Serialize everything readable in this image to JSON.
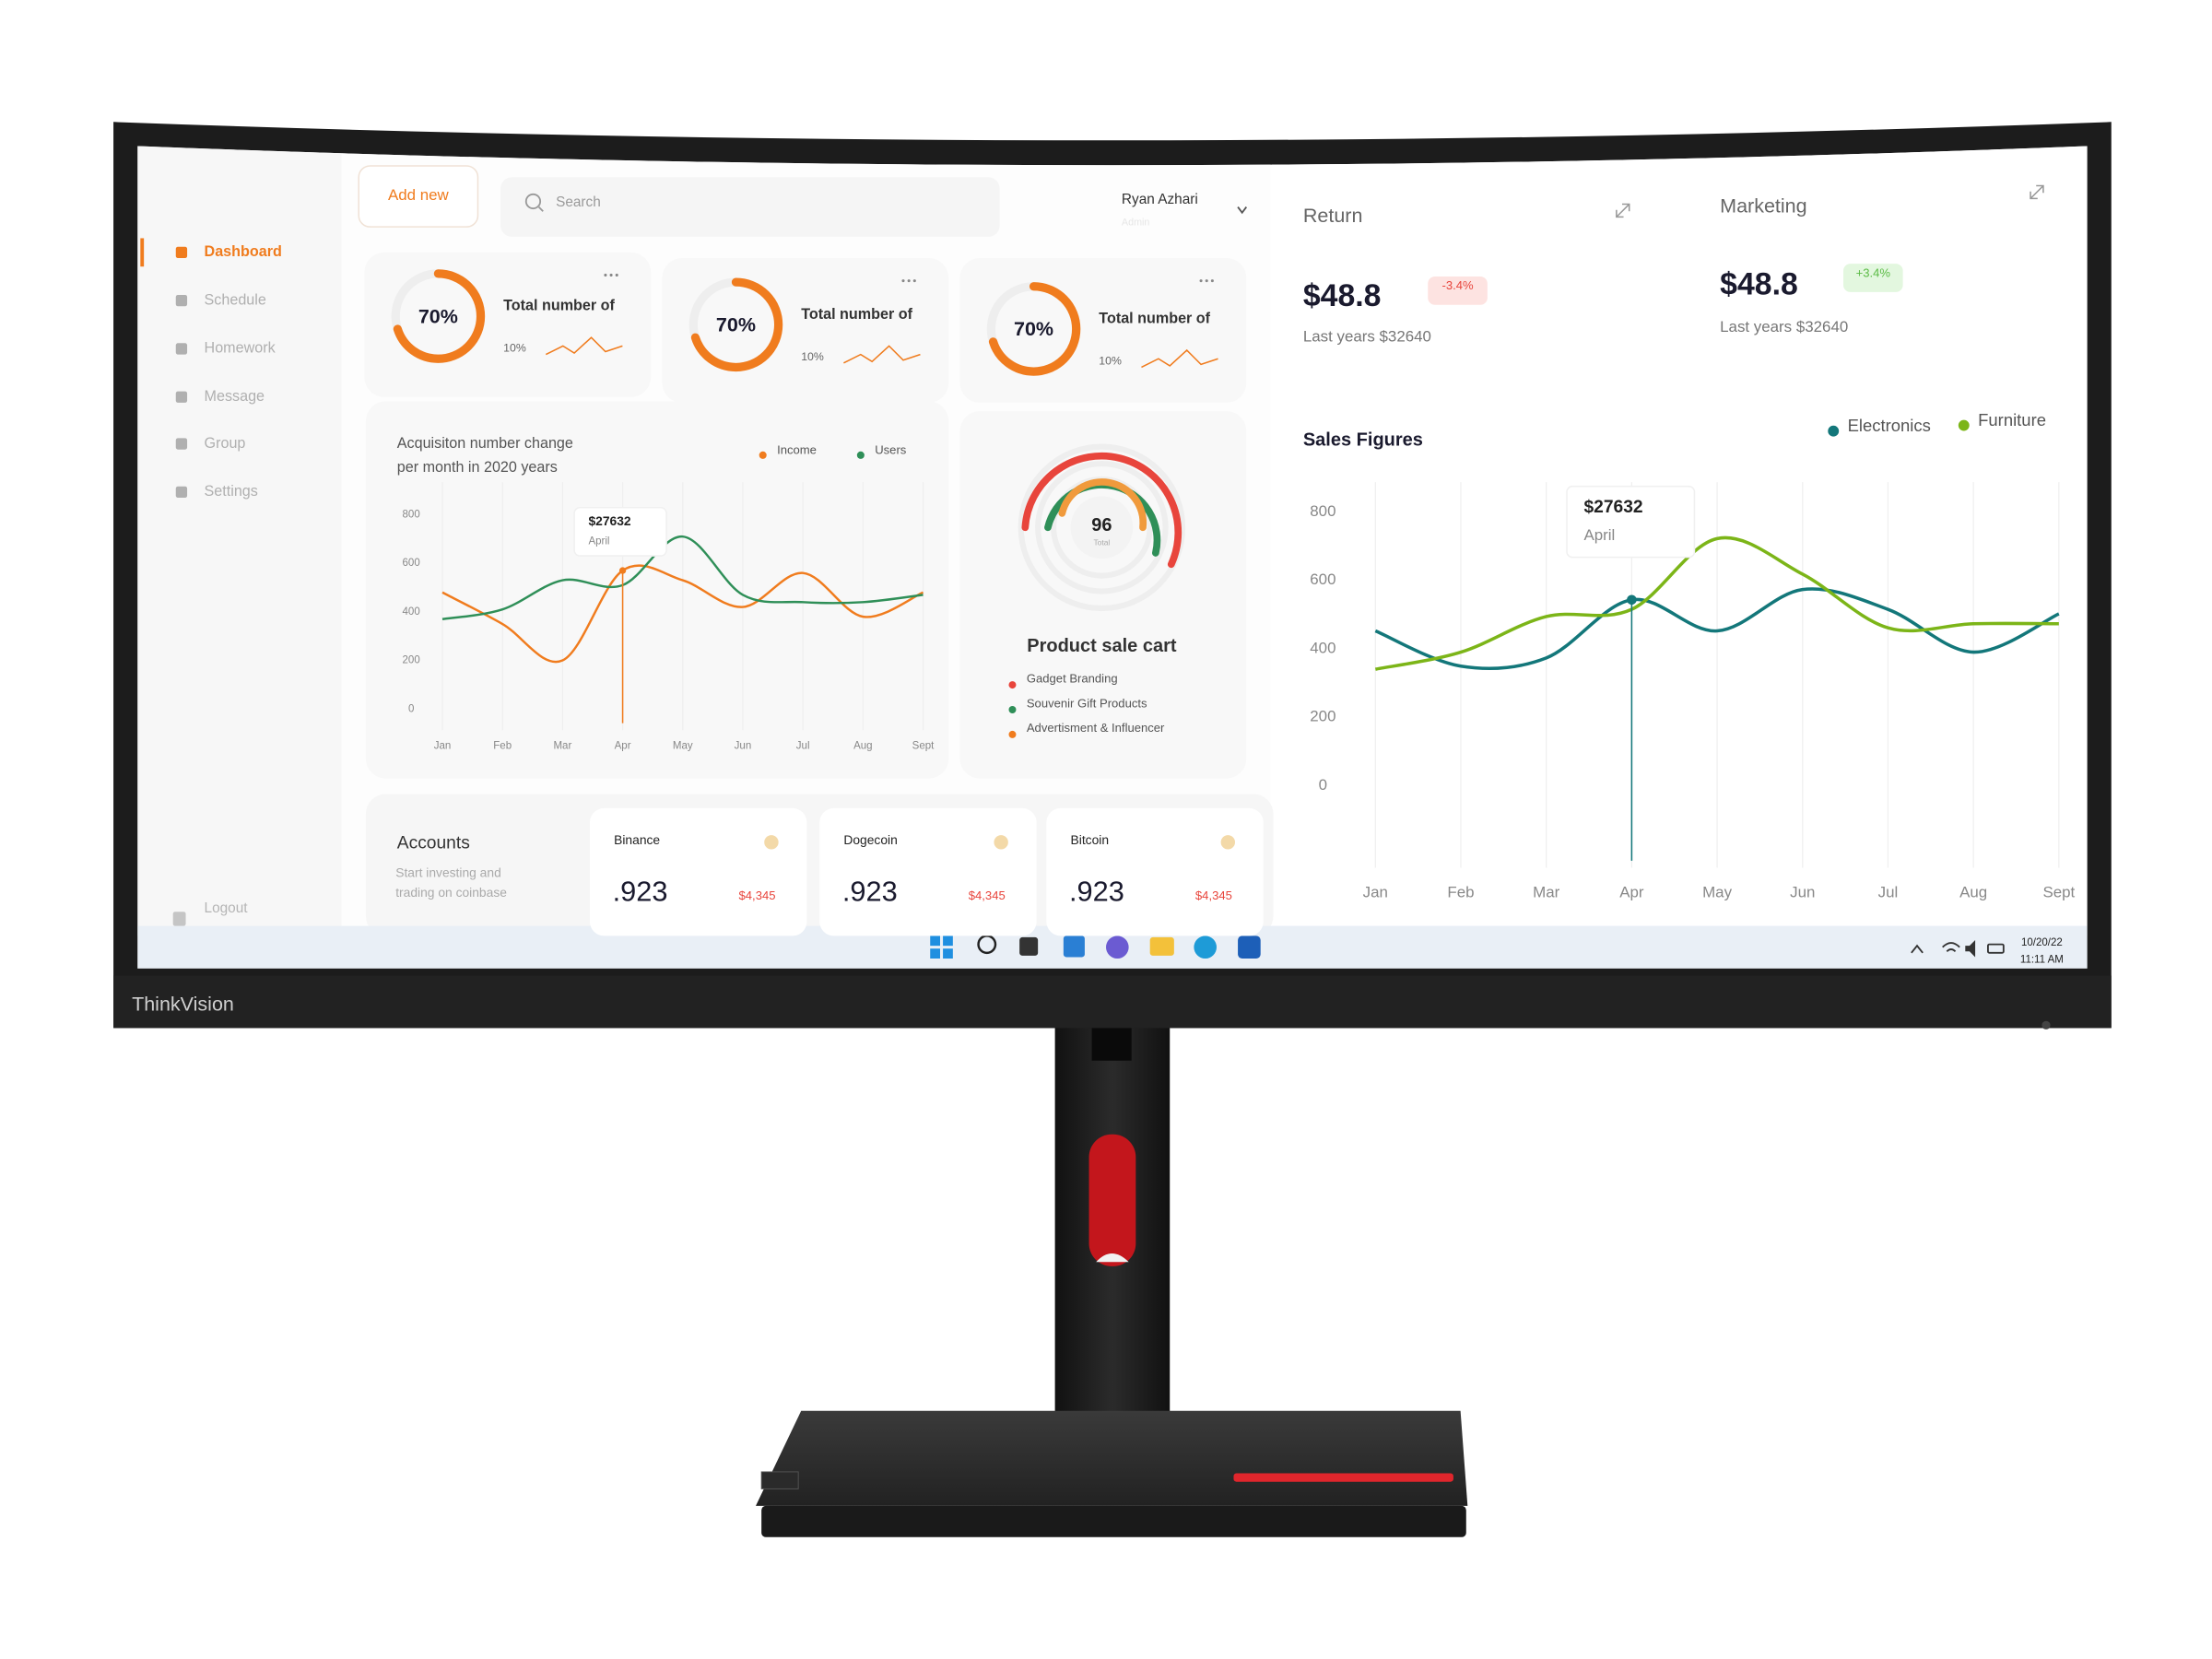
{
  "brand": "ThinkVision",
  "sidebar": {
    "menu": [
      "Dashboard",
      "Schedule",
      "Homework",
      "Message",
      "Group",
      "Settings"
    ],
    "logout": "Logout"
  },
  "topbar": {
    "add_button": "Add new",
    "search_placeholder": "Search",
    "user_name": "Ryan Azhari",
    "user_role": "Admin"
  },
  "stat_cards": [
    {
      "percent": {
        "value": 70,
        "label": "70%"
      },
      "title": "Total number of",
      "change": "10%"
    },
    {
      "percent": {
        "value": 70,
        "label": "70%"
      },
      "title": "Total number of",
      "change": "10%"
    },
    {
      "percent": {
        "value": 70,
        "label": "70%"
      },
      "title": "Total number of",
      "change": "10%"
    }
  ],
  "acquisition_chart": {
    "type": "line",
    "title_lines": [
      "Acquisiton number change",
      "per month in 2020 years"
    ],
    "categories": [
      "Jan",
      "Feb",
      "Mar",
      "Apr",
      "May",
      "Jun",
      "Jul",
      "Aug",
      "Sept"
    ],
    "series": [
      {
        "name": "Income",
        "color": "#f07c1e",
        "values": [
          480,
          350,
          200,
          570,
          530,
          420,
          560,
          380,
          480
        ]
      },
      {
        "name": "Users",
        "color": "#2f8f58",
        "values": [
          370,
          410,
          530,
          510,
          710,
          470,
          440,
          440,
          470
        ]
      }
    ],
    "ylim": [
      0,
      800
    ],
    "yticks": [
      0,
      200,
      400,
      600,
      800
    ],
    "tooltip": {
      "value": "$27632",
      "label": "April"
    }
  },
  "product_sale_cart": {
    "total_value": 96,
    "total_label": "Total",
    "title": "Product sale cart",
    "items": [
      {
        "name": "Gadget Branding",
        "color": "#e8453c"
      },
      {
        "name": "Souvenir Gift Products",
        "color": "#2f8f58"
      },
      {
        "name": "Advertisment & Influencer",
        "color": "#f07c1e"
      }
    ]
  },
  "kpis": [
    {
      "title": "Return",
      "amount": "$48.8",
      "change": "-3.4%",
      "note": "Last years $32640"
    },
    {
      "title": "Marketing",
      "amount": "$48.8",
      "change": "+3.4%",
      "note": "Last years $32640"
    }
  ],
  "sales_chart": {
    "type": "line",
    "title": "Sales Figures",
    "categories": [
      "Jan",
      "Feb",
      "Mar",
      "Apr",
      "May",
      "Jun",
      "Jul",
      "Aug",
      "Sept"
    ],
    "series": [
      {
        "name": "Electronics",
        "color": "#13777a",
        "values": [
          452,
          349,
          373,
          543,
          452,
          573,
          515,
          390,
          502
        ]
      },
      {
        "name": "Furniture",
        "color": "#7cb518",
        "values": [
          340,
          390,
          494,
          515,
          722,
          618,
          461,
          473,
          473
        ]
      }
    ],
    "ylim": [
      0,
      800
    ],
    "yticks": [
      0,
      200,
      400,
      600,
      800
    ],
    "tooltip": {
      "value": "$27632",
      "label": "April"
    }
  },
  "accounts": {
    "title": "Accounts",
    "subtitle_lines": [
      "Start investing and",
      "trading on coinbase"
    ],
    "coins": [
      {
        "name": "Binance",
        "value": ".923",
        "amount": "$4,345"
      },
      {
        "name": "Dogecoin",
        "value": ".923",
        "amount": "$4,345"
      },
      {
        "name": "Bitcoin",
        "value": ".923",
        "amount": "$4,345"
      }
    ]
  },
  "taskbar": {
    "date": "10/20/22",
    "time": "11:11 AM"
  }
}
